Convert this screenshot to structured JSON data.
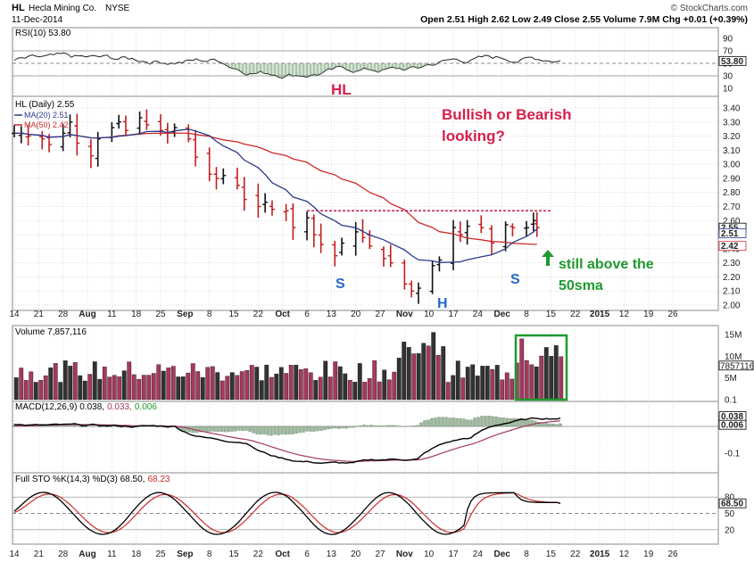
{
  "header": {
    "ticker": "HL",
    "company": "Hecla Mining Co.",
    "exchange": "NYSE",
    "date": "11-Dec-2014",
    "brand": "© StockCharts.com",
    "quote": "Open 2.51  High 2.62  Low 2.49  Close 2.55  Volume 7.9M  Chg +0.01 (+0.39%)"
  },
  "colors": {
    "panel_bg": "#ffffff",
    "grid": "#c8c8c8",
    "ma20": "#2a3a8c",
    "ma50": "#cc2a2a",
    "up_bar": "#111111",
    "down_bar": "#c21d1d",
    "vol_up": "#333333",
    "vol_down": "#a33a5c",
    "annot_red": "#d61e4a",
    "annot_blue": "#2468c8",
    "annot_green": "#1f9a2e",
    "resistance": "#c21d52"
  },
  "annotations": {
    "hl": "HL",
    "question_line1": "Bullish or Bearish",
    "question_line2": "looking?",
    "s_left": "S",
    "h": "H",
    "s_right": "S",
    "above_line1": "still above the",
    "above_line2": "50sma"
  },
  "panels": {
    "rsi": {
      "legend": "RSI(10) 53.80",
      "ticks": [
        "90",
        "70",
        "50",
        "30",
        "10"
      ],
      "value_label": "53.80"
    },
    "price": {
      "legend": "HL (Daily) 2.55",
      "ma20_legend": "MA(20) 2.51",
      "ma50_legend": "MA(50) 2.42",
      "ticks": [
        "3.40",
        "3.30",
        "3.20",
        "3.10",
        "3.00",
        "2.90",
        "2.80",
        "2.70",
        "2.60",
        "2.50",
        "2.40",
        "2.30",
        "2.20",
        "2.10",
        "2.00"
      ],
      "labels_right": [
        "2.55",
        "2.51",
        "2.42"
      ]
    },
    "volume": {
      "legend": "Volume 7,857,116",
      "ticks": [
        "15M",
        "10M",
        "5M"
      ],
      "value_label": "7857116"
    },
    "macd": {
      "legend_a": "MACD(12,26,9) 0.038,",
      "legend_b": "0.033,",
      "legend_c": "0.006",
      "ticks": [
        "0.1",
        "0.0",
        "-0.1"
      ],
      "labels_right": [
        "0.038",
        "0.006"
      ]
    },
    "sto": {
      "legend_a": "Full STO %K(14,3) %D(3) 68.50,",
      "legend_b": "68.23",
      "ticks": [
        "80",
        "50",
        "20"
      ],
      "value_label": "68.50"
    }
  },
  "x_axis": {
    "labels": [
      "14",
      "21",
      "28",
      "Aug",
      "11",
      "18",
      "25",
      "Sep",
      "8",
      "15",
      "22",
      "Oct",
      "6",
      "13",
      "20",
      "27",
      "Nov",
      "10",
      "17",
      "24",
      "Dec",
      "8",
      "15",
      "22",
      "2015",
      "12",
      "19",
      "26"
    ],
    "bold": [
      "Aug",
      "Sep",
      "Oct",
      "Nov",
      "Dec",
      "2015"
    ]
  },
  "chart_data": {
    "type": "line",
    "title": "HL Hecla Mining Co. NYSE",
    "frequency": "daily",
    "x_range": [
      "2014-07-14",
      "2015-01-26"
    ],
    "price": {
      "ylim": [
        2.0,
        3.4
      ],
      "ohlc_approx": [
        {
          "d": "07-14",
          "c": 3.22
        },
        {
          "d": "07-16",
          "c": 3.22
        },
        {
          "d": "07-18",
          "c": 3.2
        },
        {
          "d": "07-22",
          "c": 3.18
        },
        {
          "d": "07-24",
          "c": 3.14
        },
        {
          "d": "07-28",
          "c": 3.22
        },
        {
          "d": "07-30",
          "c": 3.3
        },
        {
          "d": "08-01",
          "c": 3.15
        },
        {
          "d": "08-05",
          "c": 3.06
        },
        {
          "d": "08-07",
          "c": 3.18
        },
        {
          "d": "08-11",
          "c": 3.26
        },
        {
          "d": "08-13",
          "c": 3.3
        },
        {
          "d": "08-15",
          "c": 3.24
        },
        {
          "d": "08-19",
          "c": 3.33
        },
        {
          "d": "08-21",
          "c": 3.28
        },
        {
          "d": "08-25",
          "c": 3.24
        },
        {
          "d": "08-27",
          "c": 3.22
        },
        {
          "d": "08-29",
          "c": 3.26
        },
        {
          "d": "09-02",
          "c": 3.18
        },
        {
          "d": "09-04",
          "c": 3.05
        },
        {
          "d": "09-08",
          "c": 2.93
        },
        {
          "d": "09-10",
          "c": 2.9
        },
        {
          "d": "09-12",
          "c": 2.92
        },
        {
          "d": "09-16",
          "c": 2.85
        },
        {
          "d": "09-18",
          "c": 2.75
        },
        {
          "d": "09-22",
          "c": 2.7
        },
        {
          "d": "09-24",
          "c": 2.73
        },
        {
          "d": "09-26",
          "c": 2.68
        },
        {
          "d": "09-30",
          "c": 2.67
        },
        {
          "d": "10-02",
          "c": 2.55
        },
        {
          "d": "10-06",
          "c": 2.62
        },
        {
          "d": "10-08",
          "c": 2.5
        },
        {
          "d": "10-10",
          "c": 2.43
        },
        {
          "d": "10-14",
          "c": 2.35
        },
        {
          "d": "10-16",
          "c": 2.44
        },
        {
          "d": "10-20",
          "c": 2.52
        },
        {
          "d": "10-22",
          "c": 2.48
        },
        {
          "d": "10-24",
          "c": 2.42
        },
        {
          "d": "10-28",
          "c": 2.33
        },
        {
          "d": "10-30",
          "c": 2.3
        },
        {
          "d": "11-03",
          "c": 2.15
        },
        {
          "d": "11-05",
          "c": 2.1
        },
        {
          "d": "11-07",
          "c": 2.12
        },
        {
          "d": "11-11",
          "c": 2.28
        },
        {
          "d": "11-13",
          "c": 2.32
        },
        {
          "d": "11-17",
          "c": 2.55
        },
        {
          "d": "11-19",
          "c": 2.5
        },
        {
          "d": "11-21",
          "c": 2.56
        },
        {
          "d": "11-25",
          "c": 2.55
        },
        {
          "d": "11-28",
          "c": 2.44
        },
        {
          "d": "12-02",
          "c": 2.57
        },
        {
          "d": "12-04",
          "c": 2.55
        },
        {
          "d": "12-08",
          "c": 2.55
        },
        {
          "d": "12-10",
          "c": 2.6
        },
        {
          "d": "12-11",
          "c": 2.55
        }
      ],
      "resistance": 2.67,
      "series": [
        {
          "name": "MA(20)",
          "last": 2.51
        },
        {
          "name": "MA(50)",
          "last": 2.42
        }
      ]
    },
    "rsi": {
      "ylim": [
        0,
        100
      ],
      "last": 53.8
    },
    "volume": {
      "ylim": [
        0,
        15000000
      ],
      "last": 7857116
    },
    "macd": {
      "last": 0.038,
      "signal": 0.033,
      "hist": 0.006
    },
    "sto": {
      "ylim": [
        0,
        100
      ],
      "k": 68.5,
      "d": 68.23
    }
  }
}
